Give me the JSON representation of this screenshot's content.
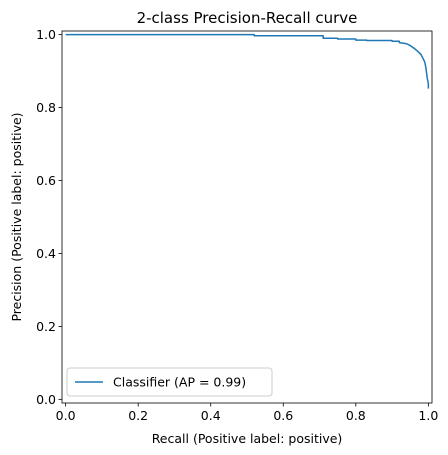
{
  "chart_data": {
    "type": "line",
    "title": "2-class Precision-Recall curve",
    "xlabel": "Recall (Positive label: positive)",
    "ylabel": "Precision (Positive label: positive)",
    "xlim": [
      -0.01,
      1.01
    ],
    "ylim": [
      -0.01,
      1.01
    ],
    "xticks": [
      "0.0",
      "0.2",
      "0.4",
      "0.6",
      "0.8",
      "1.0"
    ],
    "yticks": [
      "0.0",
      "0.2",
      "0.4",
      "0.6",
      "0.8",
      "1.0"
    ],
    "grid": false,
    "legend_position": "lower-left",
    "series": [
      {
        "name": "Classifier (AP = 0.99)",
        "color": "#1f77b4",
        "x": [
          0.0,
          0.52,
          0.52,
          0.71,
          0.71,
          0.75,
          0.75,
          0.8,
          0.8,
          0.83,
          0.83,
          0.9,
          0.9,
          0.92,
          0.92,
          0.94,
          0.95,
          0.96,
          0.97,
          0.98,
          0.985,
          0.99,
          0.993,
          0.995,
          0.997,
          1.0,
          1.0
        ],
        "y": [
          1.0,
          1.0,
          0.997,
          0.997,
          0.99,
          0.99,
          0.988,
          0.988,
          0.985,
          0.985,
          0.984,
          0.984,
          0.982,
          0.982,
          0.978,
          0.975,
          0.97,
          0.963,
          0.955,
          0.945,
          0.935,
          0.925,
          0.91,
          0.895,
          0.88,
          0.865,
          0.852
        ]
      }
    ]
  }
}
